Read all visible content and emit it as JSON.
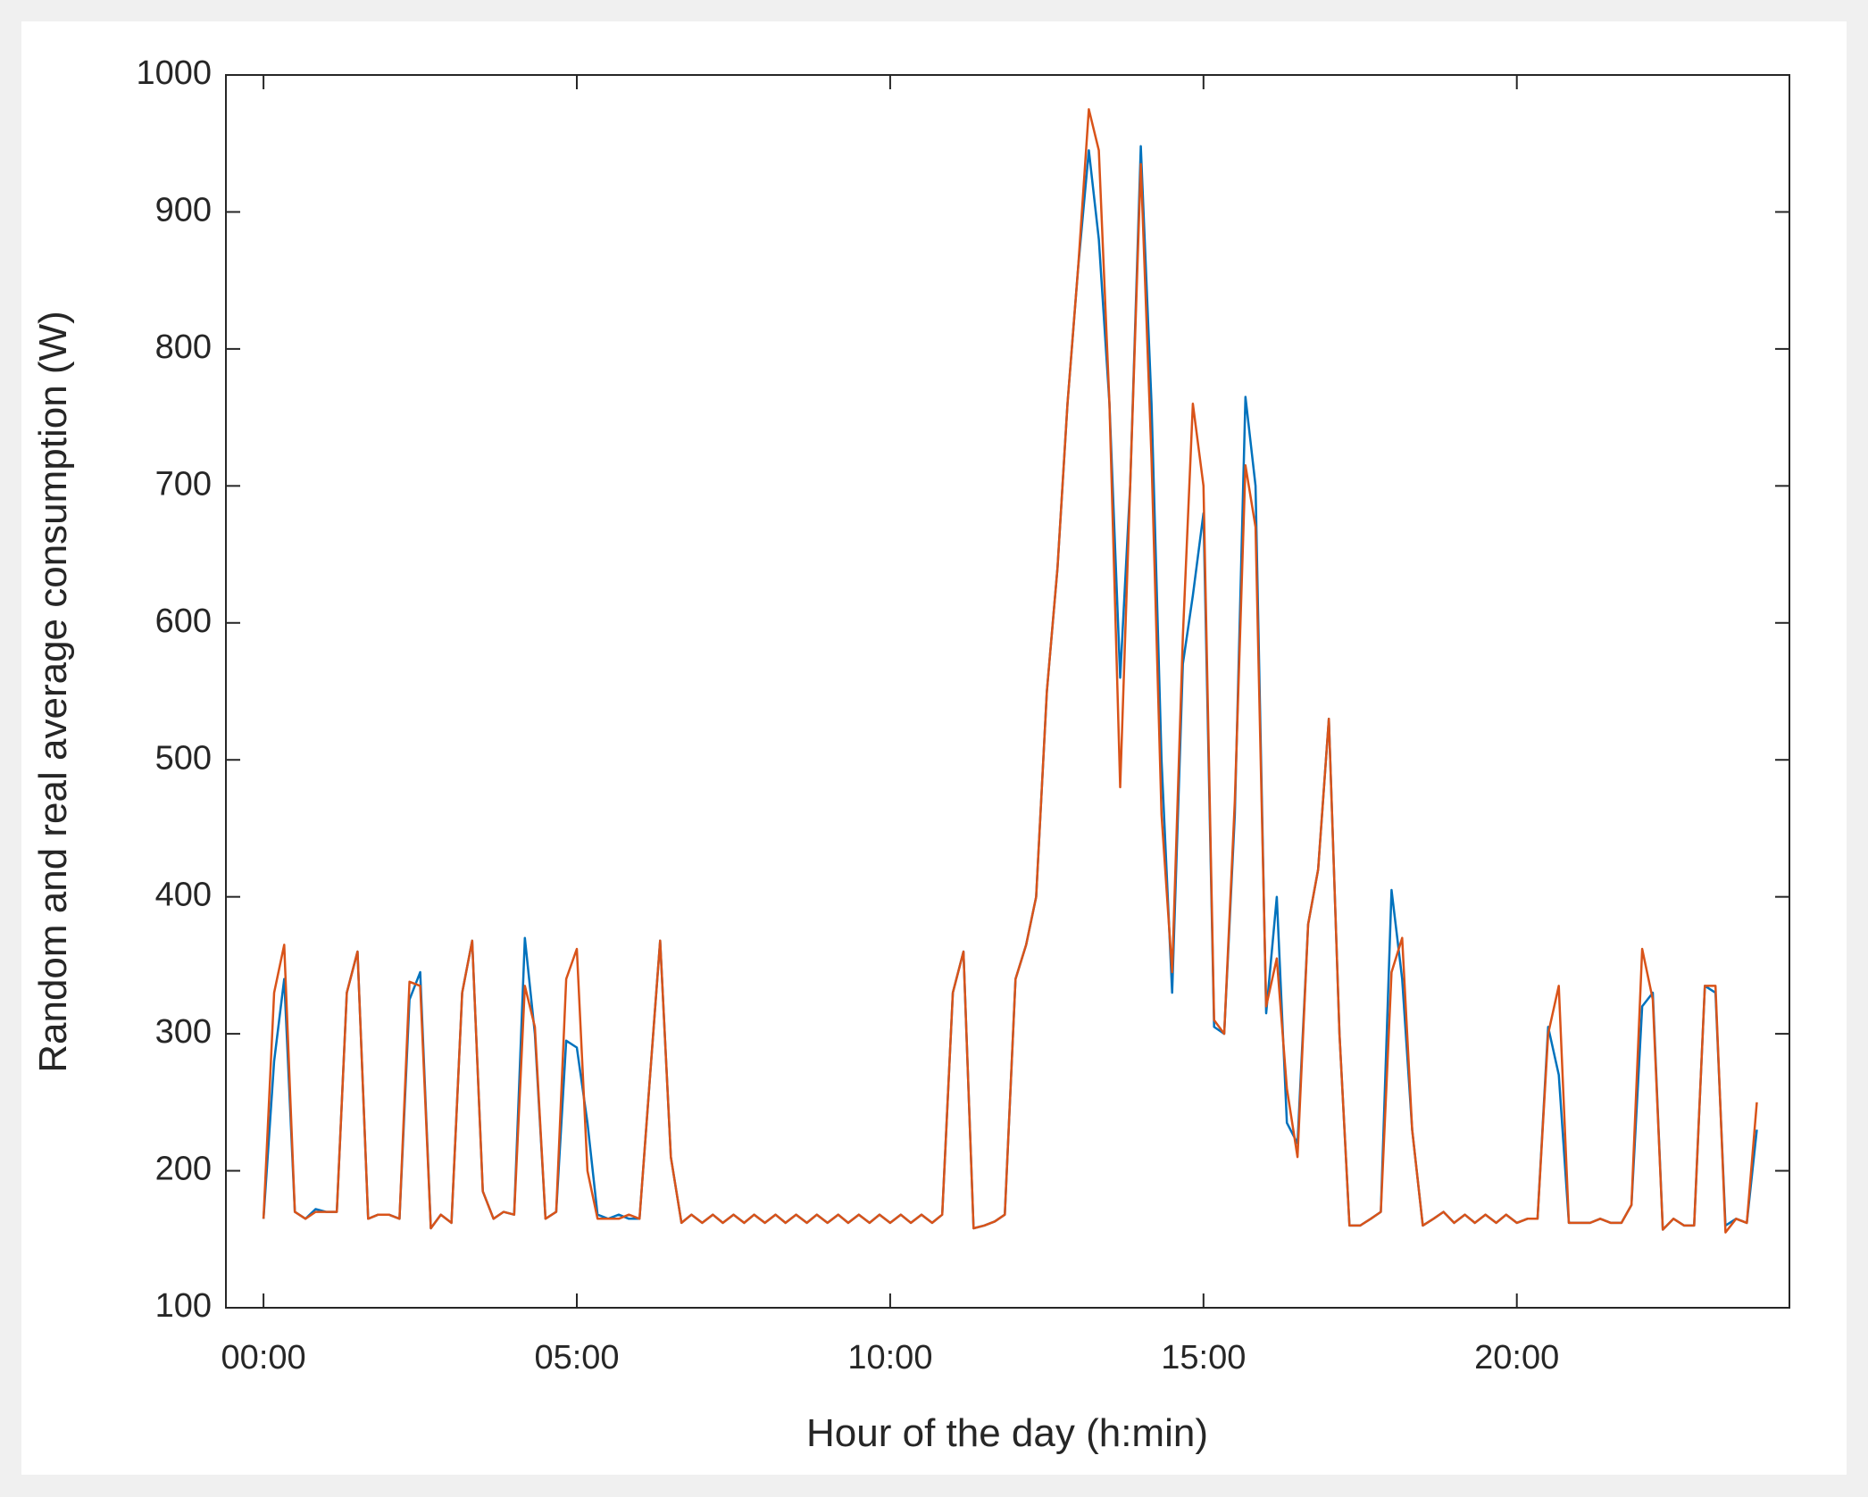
{
  "chart_data": {
    "type": "line",
    "x_label": "Hour of the day (h:min)",
    "y_label": "Random and real average consumption (W)",
    "x": [
      0,
      0.17,
      0.33,
      0.5,
      0.67,
      0.83,
      1,
      1.17,
      1.33,
      1.5,
      1.67,
      1.83,
      2,
      2.17,
      2.33,
      2.5,
      2.67,
      2.83,
      3,
      3.17,
      3.33,
      3.5,
      3.67,
      3.83,
      4,
      4.17,
      4.33,
      4.5,
      4.67,
      4.83,
      5,
      5.17,
      5.33,
      5.5,
      5.67,
      5.83,
      6,
      6.17,
      6.33,
      6.5,
      6.67,
      6.83,
      7,
      7.17,
      7.33,
      7.5,
      7.67,
      7.83,
      8,
      8.17,
      8.33,
      8.5,
      8.67,
      8.83,
      9,
      9.17,
      9.33,
      9.5,
      9.67,
      9.83,
      10,
      10.17,
      10.33,
      10.5,
      10.67,
      10.83,
      11,
      11.17,
      11.33,
      11.5,
      11.67,
      11.83,
      12,
      12.17,
      12.33,
      12.5,
      12.67,
      12.83,
      13,
      13.17,
      13.33,
      13.5,
      13.67,
      13.83,
      14,
      14.17,
      14.33,
      14.5,
      14.67,
      14.83,
      15,
      15.17,
      15.33,
      15.5,
      15.67,
      15.83,
      16,
      16.17,
      16.33,
      16.5,
      16.67,
      16.83,
      17,
      17.17,
      17.33,
      17.5,
      17.67,
      17.83,
      18,
      18.17,
      18.33,
      18.5,
      18.67,
      18.83,
      19,
      19.17,
      19.33,
      19.5,
      19.67,
      19.83,
      20,
      20.17,
      20.33,
      20.5,
      20.67,
      20.83,
      21,
      21.17,
      21.33,
      21.5,
      21.67,
      21.83,
      22,
      22.17,
      22.33,
      22.5,
      22.67,
      22.83,
      23,
      23.17,
      23.33,
      23.5,
      23.67,
      23.83
    ],
    "series": [
      {
        "color": "#0072bd",
        "values": [
          165,
          280,
          340,
          170,
          165,
          172,
          170,
          170,
          330,
          360,
          165,
          168,
          168,
          165,
          325,
          345,
          158,
          168,
          162,
          330,
          368,
          185,
          165,
          170,
          168,
          370,
          300,
          165,
          170,
          295,
          290,
          235,
          168,
          165,
          168,
          165,
          165,
          270,
          368,
          210,
          162,
          168,
          162,
          168,
          162,
          168,
          162,
          168,
          162,
          168,
          162,
          168,
          162,
          168,
          162,
          168,
          162,
          168,
          162,
          168,
          162,
          168,
          162,
          168,
          162,
          168,
          330,
          360,
          158,
          160,
          163,
          168,
          340,
          365,
          400,
          550,
          640,
          760,
          860,
          945,
          880,
          760,
          560,
          700,
          948,
          760,
          500,
          330,
          570,
          620,
          680,
          305,
          300,
          460,
          765,
          700,
          315,
          400,
          235,
          220,
          380,
          420,
          530,
          300,
          160,
          160,
          165,
          170,
          405,
          340,
          230,
          160,
          165,
          170,
          162,
          168,
          162,
          168,
          162,
          168,
          162,
          165,
          165,
          305,
          270,
          162,
          162,
          162,
          165,
          162,
          162,
          175,
          320,
          330,
          157,
          165,
          160,
          160,
          335,
          330,
          160,
          165,
          162,
          230
        ]
      },
      {
        "color": "#d95319",
        "values": [
          165,
          330,
          365,
          170,
          165,
          170,
          170,
          170,
          330,
          360,
          165,
          168,
          168,
          165,
          338,
          335,
          158,
          168,
          162,
          330,
          368,
          185,
          165,
          170,
          168,
          335,
          305,
          165,
          170,
          340,
          362,
          200,
          165,
          165,
          165,
          168,
          165,
          270,
          368,
          210,
          162,
          168,
          162,
          168,
          162,
          168,
          162,
          168,
          162,
          168,
          162,
          168,
          162,
          168,
          162,
          168,
          162,
          168,
          162,
          168,
          162,
          168,
          162,
          168,
          162,
          168,
          330,
          360,
          158,
          160,
          163,
          168,
          340,
          365,
          400,
          550,
          640,
          760,
          860,
          975,
          945,
          760,
          480,
          700,
          935,
          720,
          460,
          345,
          590,
          760,
          700,
          310,
          300,
          470,
          715,
          670,
          320,
          355,
          260,
          210,
          380,
          420,
          530,
          300,
          160,
          160,
          165,
          170,
          345,
          370,
          230,
          160,
          165,
          170,
          162,
          168,
          162,
          168,
          162,
          168,
          162,
          165,
          165,
          300,
          335,
          162,
          162,
          162,
          165,
          162,
          162,
          175,
          362,
          325,
          157,
          165,
          160,
          160,
          335,
          335,
          155,
          165,
          162,
          250
        ]
      }
    ],
    "xlim": [
      -0.6,
      24.35
    ],
    "xticks": [
      {
        "value": 0,
        "label": "00:00"
      },
      {
        "value": 5,
        "label": "05:00"
      },
      {
        "value": 10,
        "label": "10:00"
      },
      {
        "value": 15,
        "label": "15:00"
      },
      {
        "value": 20,
        "label": "20:00"
      }
    ],
    "ylim": [
      100,
      1000
    ],
    "yticks": [
      100,
      200,
      300,
      400,
      500,
      600,
      700,
      800,
      900,
      1000
    ],
    "grid": false
  }
}
